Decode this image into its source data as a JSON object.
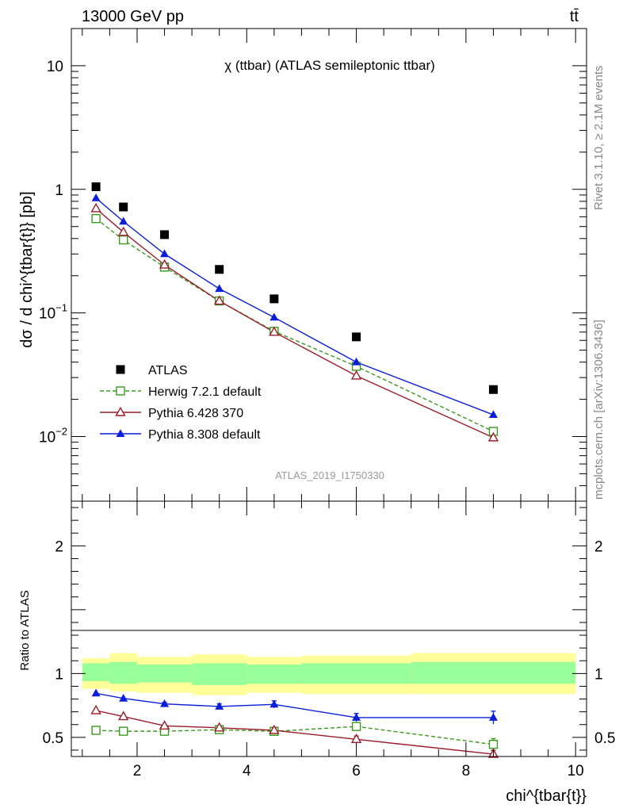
{
  "header": {
    "energy_label": "13000 GeV pp",
    "process_label": "tt̄"
  },
  "side_labels": {
    "rivet": "Rivet 3.1.10, ≥ 2.1M events",
    "mcplots": "mcplots.cern.ch [arXiv:1306.3436]"
  },
  "colors": {
    "data": "#000000",
    "herwig": "#3a9a1e",
    "pythia6": "#9b1c2a",
    "pythia8": "#0b1ed8",
    "band_inner": "#99ff99",
    "band_outer": "#ffff99"
  },
  "chart_data": [
    {
      "type": "scatter",
      "title": "χ (ttbar) (ATLAS semileptonic ttbar)",
      "analysis_label": "ATLAS_2019_I1750330",
      "ylabel": "dσ / d chi^{tbar{t}} [pb]",
      "xlabel": "chi^{tbar{t}}",
      "yscale": "log",
      "xlim": [
        0.8,
        10.2
      ],
      "ylim": [
        0.003,
        20
      ],
      "y_ticks": [
        {
          "value": 0.01,
          "base": "10",
          "exp": "−2"
        },
        {
          "value": 0.1,
          "base": "10",
          "exp": "−1"
        },
        {
          "value": 1,
          "base": "1",
          "exp": ""
        },
        {
          "value": 10,
          "base": "10",
          "exp": ""
        }
      ],
      "bins": [
        [
          1,
          1.5
        ],
        [
          1.5,
          2
        ],
        [
          2,
          3
        ],
        [
          3,
          4
        ],
        [
          4,
          5
        ],
        [
          5,
          7
        ],
        [
          7,
          10
        ]
      ],
      "x": [
        1.25,
        1.75,
        2.5,
        3.5,
        4.5,
        6,
        8.5
      ],
      "series": [
        {
          "name": "ATLAS",
          "key": "data",
          "marker": "square",
          "values": [
            1.05,
            0.72,
            0.43,
            0.225,
            0.13,
            0.064,
            0.024
          ]
        },
        {
          "name": "Herwig 7.2.1 default",
          "key": "herwig",
          "marker": "open-square",
          "dash": true,
          "values": [
            0.58,
            0.39,
            0.235,
            0.125,
            0.071,
            0.037,
            0.011
          ]
        },
        {
          "name": "Pythia 6.428 370",
          "key": "pythia6",
          "marker": "open-triangle",
          "dash": false,
          "values": [
            0.7,
            0.45,
            0.245,
            0.125,
            0.07,
            0.031,
            0.0098
          ]
        },
        {
          "name": "Pythia 8.308 default",
          "key": "pythia8",
          "marker": "filled-triangle",
          "dash": false,
          "values": [
            0.85,
            0.55,
            0.3,
            0.157,
            0.092,
            0.04,
            0.015
          ]
        }
      ]
    },
    {
      "type": "scatter",
      "ylabel": "Ratio to ATLAS",
      "xlabel": "chi^{tbar{t}}",
      "xlim": [
        0.8,
        10.2
      ],
      "ylim": [
        0.35,
        2.35
      ],
      "x_ticks": [
        "2",
        "4",
        "6",
        "8",
        "10"
      ],
      "y_ticks": [
        "0.5",
        "1",
        "2"
      ],
      "bins": [
        [
          1,
          1.5
        ],
        [
          1.5,
          2
        ],
        [
          2,
          3
        ],
        [
          3,
          4
        ],
        [
          4,
          5
        ],
        [
          5,
          7
        ],
        [
          7,
          10
        ]
      ],
      "x": [
        1.25,
        1.75,
        2.5,
        3.5,
        4.5,
        6,
        8.5
      ],
      "band_inner": [
        [
          0.94,
          1.08
        ],
        [
          0.92,
          1.09
        ],
        [
          0.93,
          1.07
        ],
        [
          0.91,
          1.08
        ],
        [
          0.92,
          1.07
        ],
        [
          0.92,
          1.08
        ],
        [
          0.92,
          1.09
        ]
      ],
      "band_outer": [
        [
          0.88,
          1.12
        ],
        [
          0.86,
          1.16
        ],
        [
          0.85,
          1.13
        ],
        [
          0.83,
          1.15
        ],
        [
          0.85,
          1.13
        ],
        [
          0.84,
          1.14
        ],
        [
          0.84,
          1.16
        ]
      ],
      "series": [
        {
          "name": "Herwig 7.2.1 default",
          "key": "herwig",
          "marker": "open-square",
          "dash": true,
          "values": [
            0.555,
            0.548,
            0.548,
            0.56,
            0.547,
            0.585,
            0.445
          ],
          "errors": [
            0.004,
            0.004,
            0.005,
            0.007,
            0.01,
            0.016,
            0.045
          ]
        },
        {
          "name": "Pythia 6.428 370",
          "key": "pythia6",
          "marker": "open-triangle",
          "dash": false,
          "values": [
            0.71,
            0.663,
            0.59,
            0.575,
            0.555,
            0.485,
            0.368
          ],
          "errors": [
            0.004,
            0.004,
            0.006,
            0.008,
            0.02,
            0.025,
            0.03
          ]
        },
        {
          "name": "Pythia 8.308 default",
          "key": "pythia8",
          "marker": "filled-triangle",
          "dash": false,
          "values": [
            0.845,
            0.805,
            0.762,
            0.742,
            0.758,
            0.655,
            0.655
          ],
          "errors": [
            0.005,
            0.006,
            0.012,
            0.02,
            0.028,
            0.032,
            0.05
          ]
        }
      ]
    }
  ]
}
